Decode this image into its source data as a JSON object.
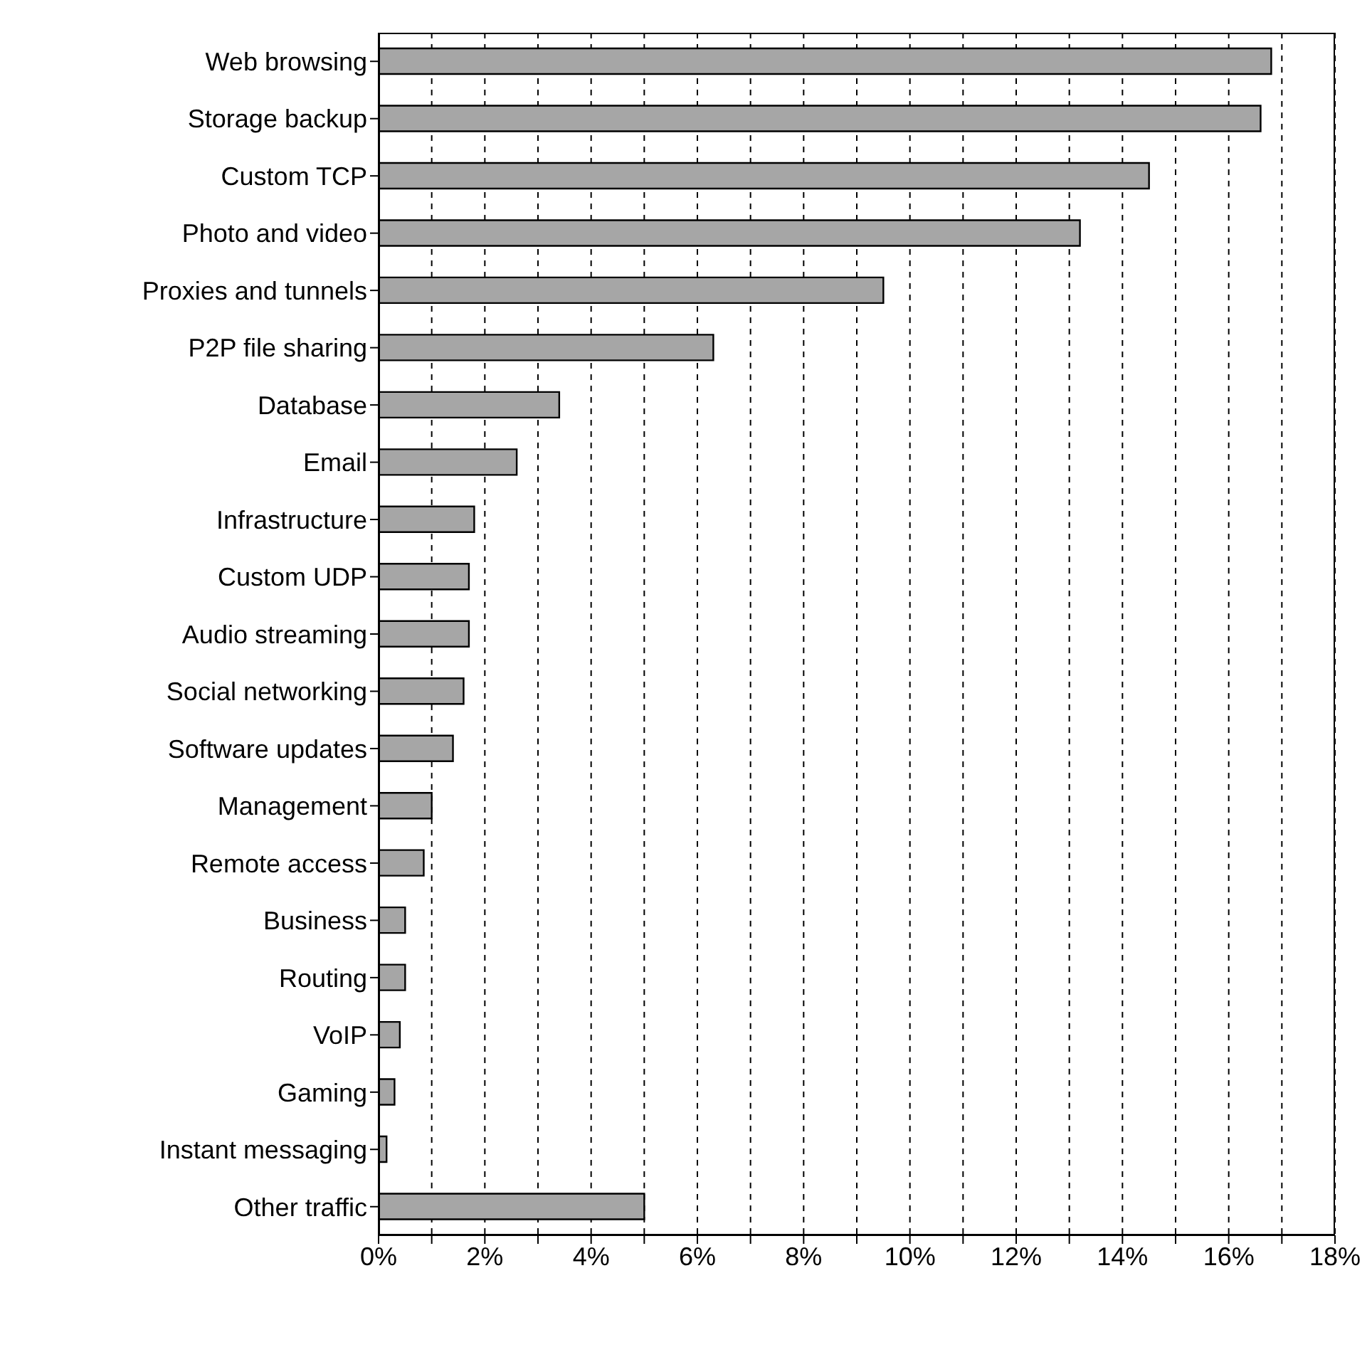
{
  "chart_data": {
    "type": "bar",
    "orientation": "horizontal",
    "categories": [
      "Web browsing",
      "Storage backup",
      "Custom TCP",
      "Photo and video",
      "Proxies and tunnels",
      "P2P file sharing",
      "Database",
      "Email",
      "Infrastructure",
      "Custom UDP",
      "Audio streaming",
      "Social networking",
      "Software updates",
      "Management",
      "Remote access",
      "Business",
      "Routing",
      "VoIP",
      "Gaming",
      "Instant messaging",
      "Other traffic"
    ],
    "values": [
      16.8,
      16.6,
      14.5,
      13.2,
      9.5,
      6.3,
      3.4,
      2.6,
      1.8,
      1.7,
      1.7,
      1.6,
      1.4,
      1.0,
      0.85,
      0.5,
      0.5,
      0.4,
      0.3,
      0.15,
      5.0
    ],
    "color": "#a6a6a6",
    "xlim": [
      0,
      18
    ],
    "xticks": [
      {
        "value": 0,
        "label": "0%"
      },
      {
        "value": 1,
        "label": null
      },
      {
        "value": 2,
        "label": "2%"
      },
      {
        "value": 3,
        "label": null
      },
      {
        "value": 4,
        "label": "4%"
      },
      {
        "value": 5,
        "label": null
      },
      {
        "value": 6,
        "label": "6%"
      },
      {
        "value": 7,
        "label": null
      },
      {
        "value": 8,
        "label": "8%"
      },
      {
        "value": 9,
        "label": null
      },
      {
        "value": 10,
        "label": "10%"
      },
      {
        "value": 11,
        "label": null
      },
      {
        "value": 12,
        "label": "12%"
      },
      {
        "value": 13,
        "label": null
      },
      {
        "value": 14,
        "label": "14%"
      },
      {
        "value": 15,
        "label": null
      },
      {
        "value": 16,
        "label": "16%"
      },
      {
        "value": 17,
        "label": null
      },
      {
        "value": 18,
        "label": "18%"
      }
    ],
    "grid": "x",
    "legend": false
  }
}
